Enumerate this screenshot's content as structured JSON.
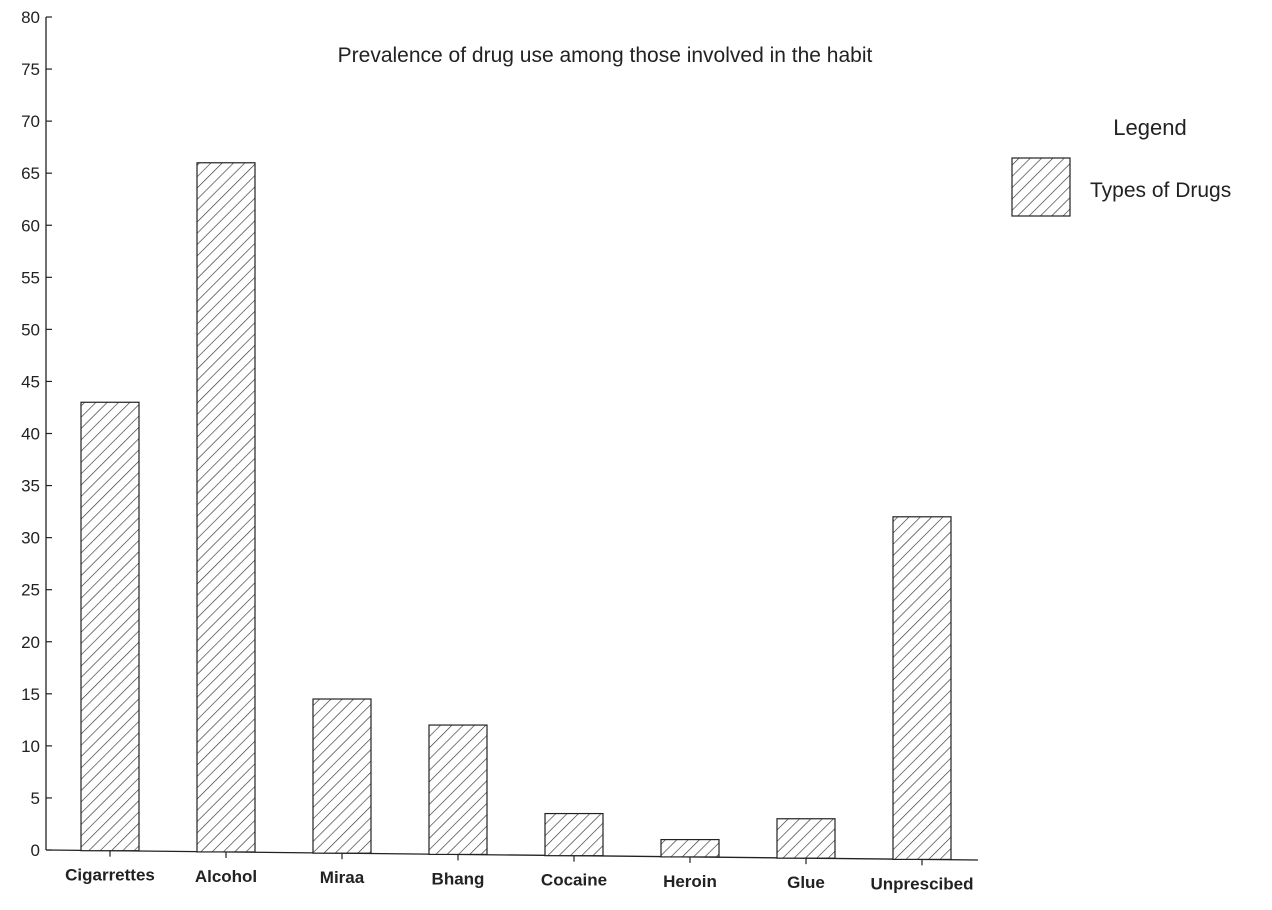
{
  "chart_data": {
    "type": "bar",
    "title": "Prevalence of drug use among those involved in the habit",
    "categories": [
      "Cigarrettes",
      "Alcohol",
      "Miraa",
      "Bhang",
      "Cocaine",
      "Heroin",
      "Glue",
      "Unprescibed"
    ],
    "series": [
      {
        "name": "Types of Drugs",
        "values": [
          43,
          66,
          14.5,
          12,
          3.5,
          1,
          3,
          32
        ]
      }
    ],
    "y_ticks": [
      "0",
      "5",
      "10",
      "15",
      "20",
      "25",
      "30",
      "35",
      "40",
      "45",
      "50",
      "55",
      "60",
      "65",
      "70",
      "75",
      "80"
    ],
    "ylim": [
      0,
      80
    ],
    "xlabel": "",
    "ylabel": "",
    "grid": false,
    "legend": {
      "title": "Legend",
      "position": "right"
    },
    "colors": {
      "ink": "#222222",
      "fill": "#ffffff"
    }
  }
}
